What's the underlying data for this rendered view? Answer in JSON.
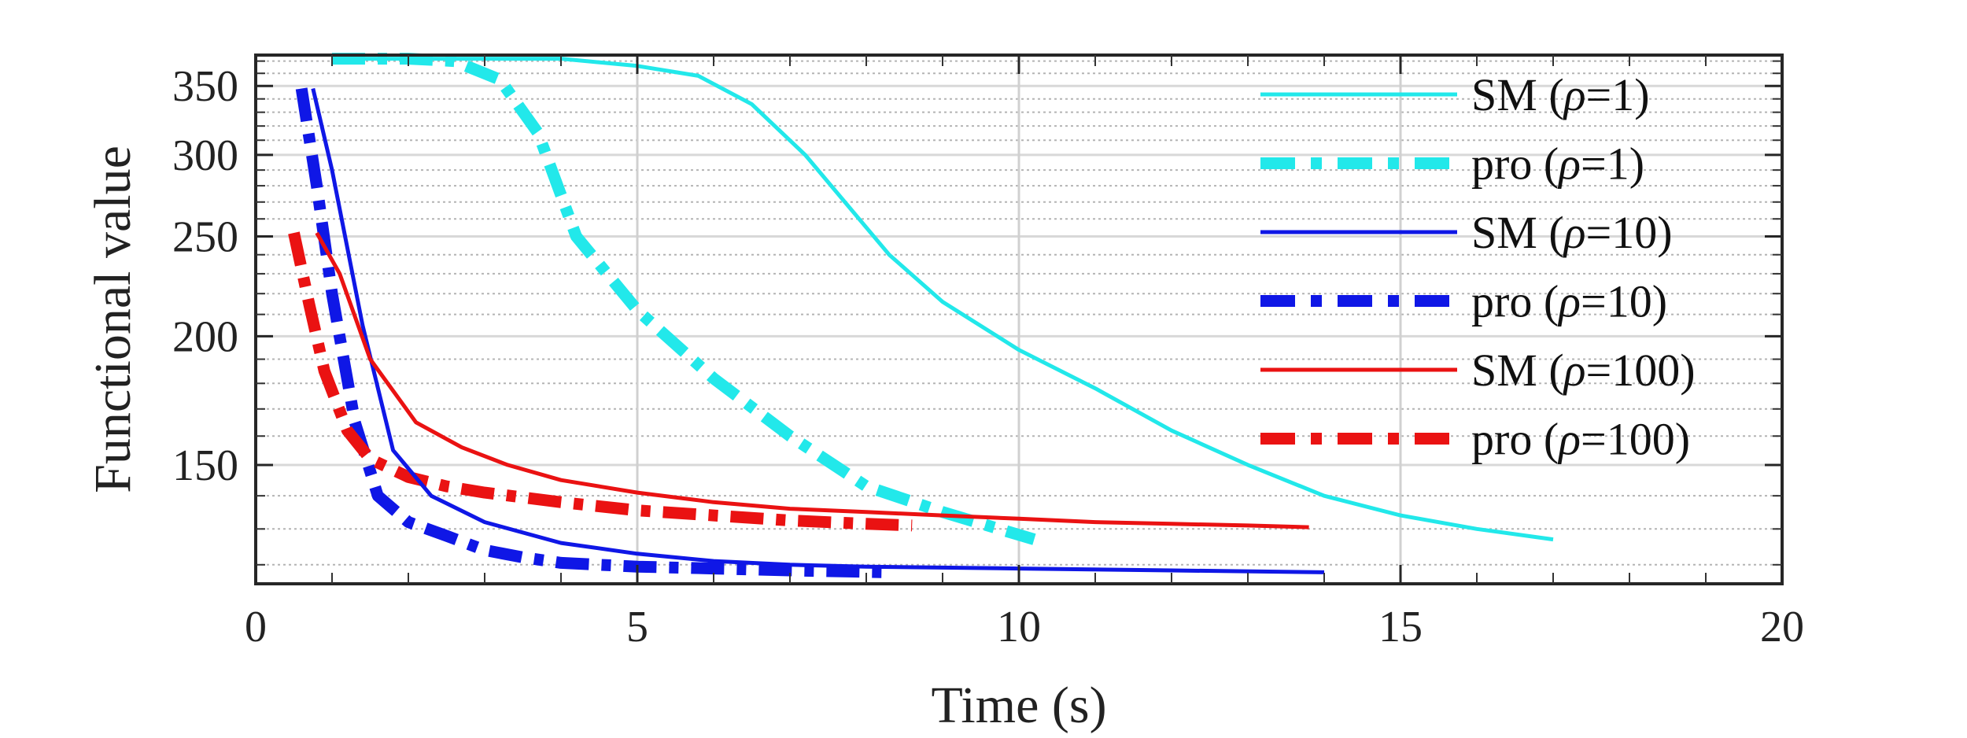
{
  "chart_data": {
    "type": "line",
    "title": "",
    "xlabel": "Time (s)",
    "ylabel": "Functional value",
    "xlim": [
      0,
      20
    ],
    "ylim": [
      115,
      375
    ],
    "y_scale": "log",
    "x_ticks": [
      0,
      5,
      10,
      15,
      20
    ],
    "x_tick_labels": [
      "0",
      "5",
      "10",
      "15",
      "20"
    ],
    "y_ticks": [
      150,
      200,
      250,
      300,
      350
    ],
    "y_tick_labels": [
      "150",
      "200",
      "250",
      "300",
      "350"
    ],
    "grid": true,
    "minor_grid": true,
    "legend_position": "top-right",
    "series": [
      {
        "name": "SM (ρ=1)",
        "legend_prefix": "SM (",
        "legend_rho": "ρ",
        "legend_suffix": "=1)",
        "color": "#22e8ea",
        "style": "solid",
        "x": [
          1.0,
          2.0,
          3.0,
          4.0,
          5.0,
          5.8,
          6.5,
          7.2,
          8.3,
          9.0,
          10.0,
          11.0,
          12.0,
          13.0,
          14.0,
          15.0,
          16.0,
          17.0
        ],
        "y": [
          372,
          372,
          372,
          372,
          366,
          358,
          336,
          300,
          240,
          216,
          194,
          178,
          162,
          150,
          140,
          134,
          130,
          127
        ]
      },
      {
        "name": "pro (ρ=1)",
        "legend_prefix": "pro (",
        "legend_rho": "ρ",
        "legend_suffix": "=1)",
        "color": "#22e8ea",
        "style": "dashdot",
        "x": [
          1.0,
          2.0,
          2.6,
          3.2,
          3.7,
          4.2,
          5.0,
          6.0,
          7.0,
          8.0,
          9.0,
          10.2
        ],
        "y": [
          372,
          372,
          370,
          355,
          315,
          250,
          212,
          182,
          160,
          143,
          135,
          127
        ]
      },
      {
        "name": "SM (ρ=10)",
        "legend_prefix": "SM (",
        "legend_rho": "ρ",
        "legend_suffix": "=10)",
        "color": "#0f17e6",
        "style": "solid",
        "x": [
          0.75,
          1.0,
          1.4,
          1.8,
          2.3,
          3.0,
          4.0,
          5.0,
          6.0,
          7.0,
          8.0,
          10.0,
          12.0,
          14.0
        ],
        "y": [
          348,
          290,
          205,
          155,
          140,
          132,
          126,
          123,
          121,
          120,
          119.5,
          119,
          118.5,
          118
        ]
      },
      {
        "name": "pro (ρ=10)",
        "legend_prefix": "pro (",
        "legend_rho": "ρ",
        "legend_suffix": "=10)",
        "color": "#0f17e6",
        "style": "dashdot",
        "x": [
          0.6,
          0.8,
          1.0,
          1.3,
          1.6,
          2.0,
          2.5,
          3.0,
          3.5,
          4.0,
          5.0,
          6.0,
          7.0,
          8.3
        ],
        "y": [
          348,
          280,
          220,
          165,
          140,
          132,
          128,
          124,
          122,
          120.5,
          119.5,
          119,
          118.5,
          118
        ]
      },
      {
        "name": "SM (ρ=100)",
        "legend_prefix": "SM (",
        "legend_rho": "ρ",
        "legend_suffix": "=100)",
        "color": "#ea1212",
        "style": "solid",
        "x": [
          0.8,
          1.1,
          1.5,
          2.1,
          2.7,
          3.3,
          4.0,
          5.0,
          6.0,
          7.0,
          8.0,
          9.0,
          10.0,
          11.0,
          12.0,
          13.0,
          13.8
        ],
        "y": [
          252,
          230,
          190,
          165,
          156,
          150,
          145,
          141,
          138,
          136,
          135,
          134,
          133,
          132,
          131.5,
          131,
          130.5
        ]
      },
      {
        "name": "pro (ρ=100)",
        "legend_prefix": "pro (",
        "legend_rho": "ρ",
        "legend_suffix": "=100)",
        "color": "#ea1212",
        "style": "dashdot",
        "x": [
          0.5,
          0.7,
          0.9,
          1.2,
          1.5,
          2.0,
          2.5,
          3.0,
          4.0,
          5.0,
          6.0,
          7.0,
          8.0,
          8.6
        ],
        "y": [
          252,
          215,
          185,
          162,
          152,
          146,
          143,
          141,
          138,
          135.5,
          134,
          132.5,
          131.5,
          131
        ]
      }
    ]
  }
}
